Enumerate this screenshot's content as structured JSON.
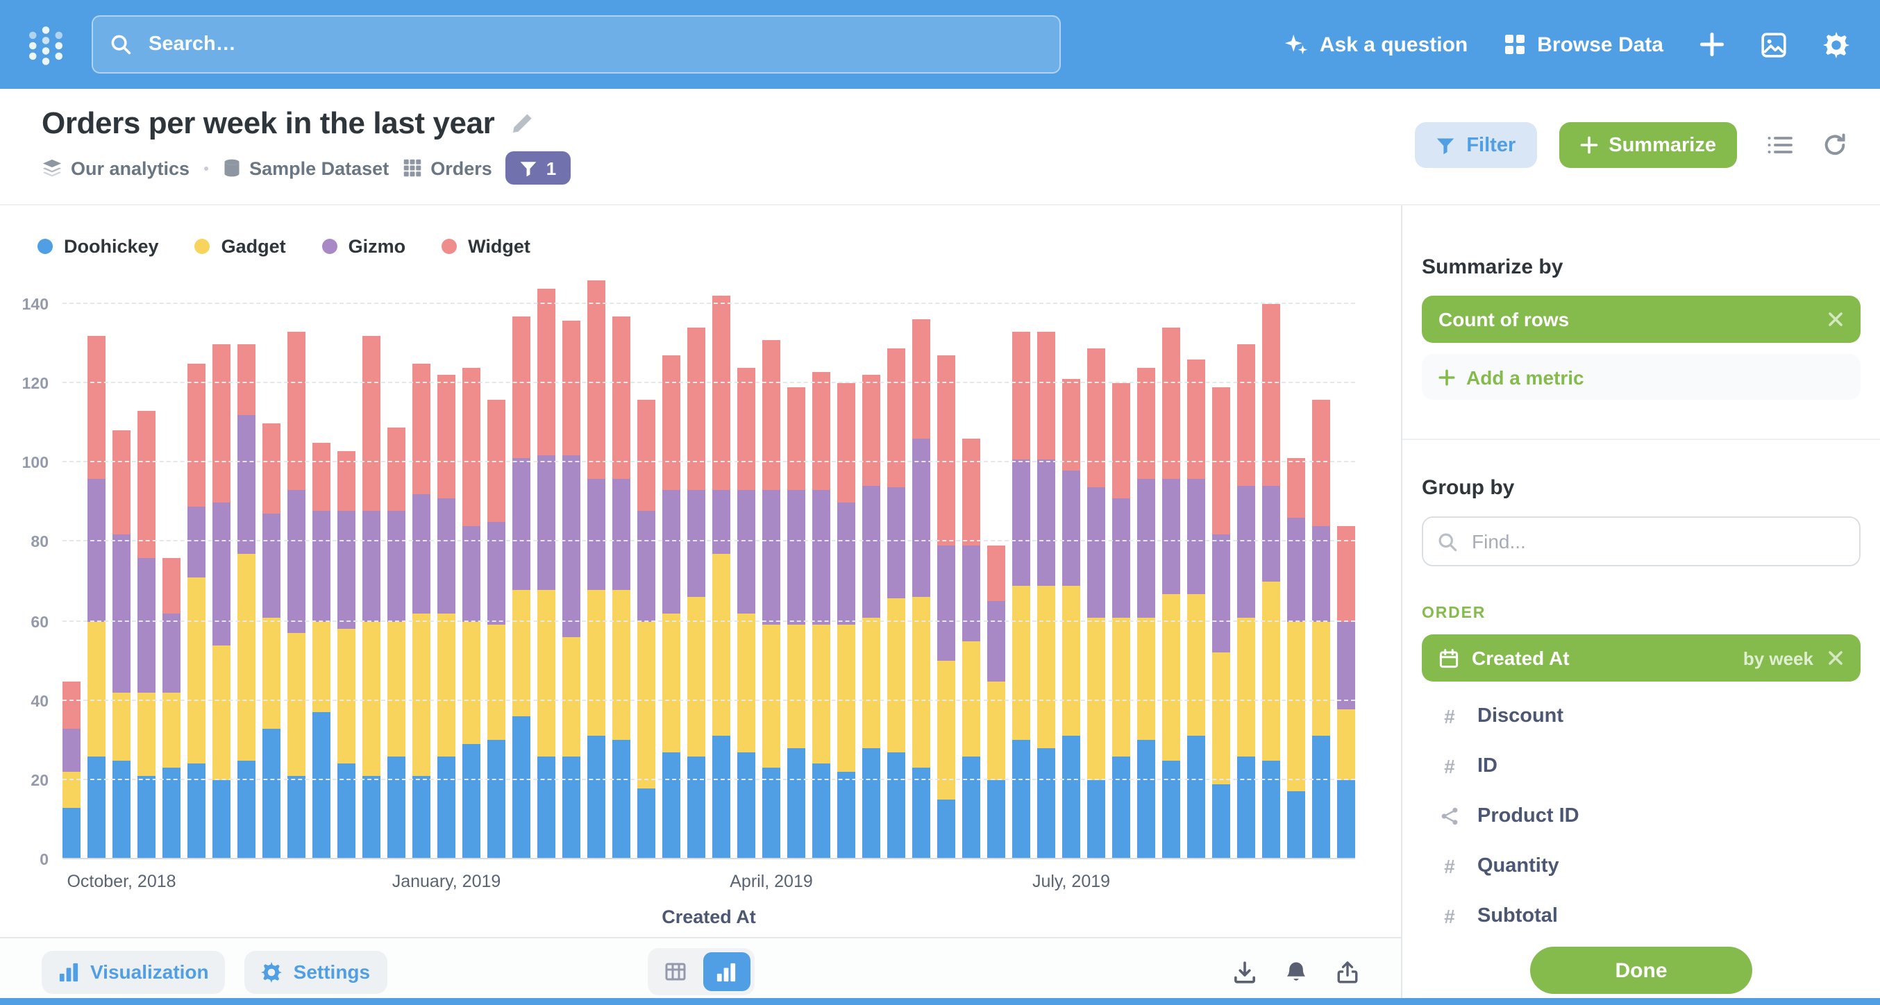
{
  "nav": {
    "search_placeholder": "Search…",
    "ask_question": "Ask a question",
    "browse_data": "Browse Data"
  },
  "header": {
    "title": "Orders per week in the last year",
    "breadcrumb": {
      "collection": "Our analytics",
      "database": "Sample Dataset",
      "table": "Orders",
      "filter_count": "1"
    },
    "filter_label": "Filter",
    "summarize_label": "Summarize"
  },
  "chart_data": {
    "type": "bar",
    "stacked": true,
    "xlabel": "Created At",
    "ylabel": "",
    "ylim": [
      0,
      140
    ],
    "ytick_step": 20,
    "x_unit": "week",
    "legend_position": "top-left",
    "grid": "dashed-horizontal",
    "x_tick_labels": [
      {
        "label": "October, 2018",
        "week_index": 2
      },
      {
        "label": "January, 2019",
        "week_index": 15
      },
      {
        "label": "April, 2019",
        "week_index": 28
      },
      {
        "label": "July, 2019",
        "week_index": 40
      }
    ],
    "series": [
      {
        "name": "Doohickey",
        "color": "#509EE3",
        "values": [
          13,
          26,
          25,
          21,
          23,
          24,
          20,
          25,
          33,
          21,
          37,
          24,
          21,
          26,
          21,
          26,
          29,
          30,
          36,
          26,
          26,
          31,
          30,
          18,
          27,
          26,
          31,
          27,
          23,
          28,
          24,
          22,
          28,
          27,
          23,
          15,
          26,
          20,
          30,
          28,
          31,
          20,
          26,
          30,
          25,
          31,
          19,
          26,
          25,
          17,
          31,
          20
        ]
      },
      {
        "name": "Gadget",
        "color": "#F9D45C",
        "values": [
          9,
          34,
          17,
          21,
          19,
          47,
          34,
          52,
          28,
          36,
          23,
          34,
          39,
          34,
          41,
          36,
          31,
          29,
          32,
          42,
          30,
          37,
          38,
          42,
          35,
          40,
          46,
          35,
          36,
          31,
          35,
          37,
          33,
          39,
          43,
          35,
          29,
          25,
          39,
          41,
          38,
          41,
          35,
          31,
          42,
          36,
          33,
          35,
          45,
          43,
          29,
          18
        ]
      },
      {
        "name": "Gizmo",
        "color": "#A989C5",
        "values": [
          11,
          36,
          40,
          34,
          20,
          18,
          36,
          35,
          26,
          36,
          28,
          30,
          28,
          28,
          30,
          29,
          24,
          26,
          33,
          34,
          46,
          28,
          28,
          28,
          31,
          27,
          16,
          31,
          34,
          34,
          34,
          31,
          33,
          28,
          40,
          29,
          24,
          20,
          32,
          32,
          29,
          33,
          30,
          35,
          29,
          29,
          30,
          33,
          24,
          26,
          24,
          22
        ]
      },
      {
        "name": "Widget",
        "color": "#EF8C8C",
        "values": [
          12,
          36,
          26,
          37,
          14,
          36,
          40,
          18,
          23,
          40,
          17,
          15,
          44,
          21,
          33,
          31,
          40,
          31,
          36,
          42,
          34,
          50,
          41,
          28,
          34,
          41,
          49,
          31,
          38,
          26,
          30,
          30,
          28,
          35,
          30,
          48,
          27,
          14,
          32,
          32,
          23,
          35,
          29,
          28,
          38,
          30,
          37,
          36,
          46,
          15,
          32,
          24
        ]
      }
    ]
  },
  "sidebar": {
    "summarize_by": "Summarize by",
    "metric": "Count of rows",
    "add_metric": "Add a metric",
    "group_by": "Group by",
    "find_placeholder": "Find...",
    "section": "ORDER",
    "active_field": {
      "name": "Created At",
      "bucket": "by week"
    },
    "fields": [
      {
        "icon": "number",
        "name": "Discount"
      },
      {
        "icon": "number",
        "name": "ID"
      },
      {
        "icon": "connection",
        "name": "Product ID"
      },
      {
        "icon": "number",
        "name": "Quantity"
      },
      {
        "icon": "number",
        "name": "Subtotal"
      }
    ],
    "done": "Done"
  },
  "footer": {
    "visualization": "Visualization",
    "settings": "Settings"
  },
  "colors": {
    "brand_blue": "#509EE3",
    "accent_green": "#84BB4C",
    "filter_badge_purple": "#7172AD",
    "text_dark": "#2E353B",
    "text_medium": "#4C5773",
    "text_gray": "#949AAB"
  }
}
